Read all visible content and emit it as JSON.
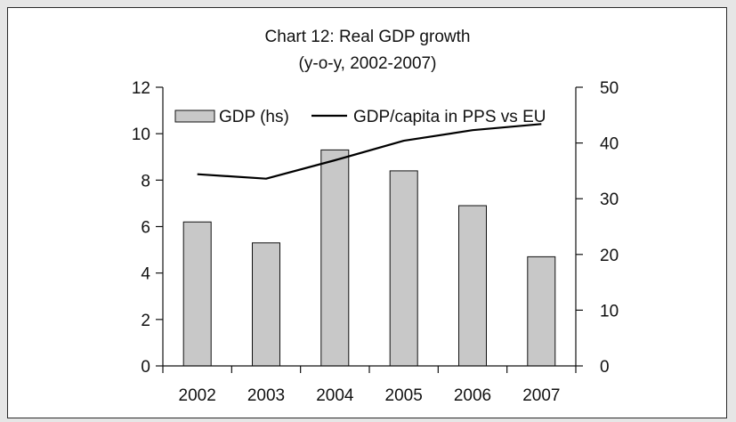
{
  "chart_data": {
    "type": "bar",
    "title": "Chart 12: Real GDP growth",
    "subtitle": "(y-o-y, 2002-2007)",
    "categories": [
      "2002",
      "2003",
      "2004",
      "2005",
      "2006",
      "2007"
    ],
    "series": [
      {
        "name": "GDP (hs)",
        "type": "bar",
        "axis": "left",
        "values": [
          6.2,
          5.3,
          9.3,
          8.4,
          6.9,
          4.7
        ],
        "color": "#c8c8c8"
      },
      {
        "name": "GDP/capita in PPS vs EU",
        "type": "line",
        "axis": "right",
        "values": [
          34.4,
          33.6,
          36.9,
          40.4,
          42.3,
          43.4
        ],
        "color": "#000000"
      }
    ],
    "y_left": {
      "min": 0,
      "max": 12,
      "ticks": [
        "0",
        "2",
        "4",
        "6",
        "8",
        "10",
        "12"
      ]
    },
    "y_right": {
      "min": 0,
      "max": 50,
      "ticks": [
        "0",
        "10",
        "20",
        "30",
        "40",
        "50"
      ]
    },
    "grid": false,
    "legend_position": "top"
  }
}
